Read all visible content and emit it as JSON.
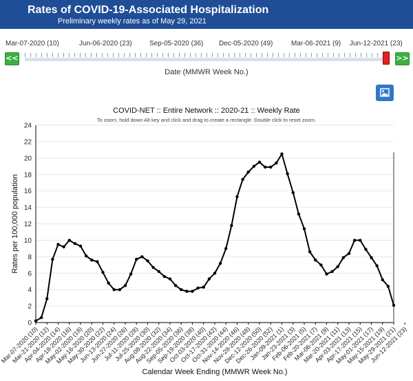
{
  "header": {
    "title": "Rates of COVID-19-Associated Hospitalization",
    "subtitle": "Preliminary weekly rates as of May 29, 2021"
  },
  "timeline": {
    "labels": [
      "Mar-07-2020 (10)",
      "Jun-06-2020 (23)",
      "Sep-05-2020 (36)",
      "Dec-05-2020 (49)",
      "Mar-06-2021 (9)",
      "Jun-12-2021 (23)"
    ],
    "prev_button": "<<",
    "next_button": ">>",
    "caption": "Date (MMWR Week No.)"
  },
  "image_button_icon": "image-icon",
  "colors": {
    "header": "#1f4e96",
    "nav_button": "#3cb043",
    "handle": "#e02020",
    "line": "#000000"
  },
  "chart_data": {
    "type": "line",
    "title": "COVID-NET :: Entire Network :: 2020-21 :: Weekly Rate",
    "subtitle": "To zoom, hold down Alt key and click and drag to create a rectangle. Double click to reset zoom.",
    "xlabel": "Calendar Week Ending (MMWR Week No.)",
    "ylabel": "Rates per 100,000 population",
    "ylim": [
      0,
      24
    ],
    "yticks": [
      0,
      2,
      4,
      6,
      8,
      10,
      12,
      14,
      16,
      18,
      20,
      22,
      24
    ],
    "grid": true,
    "xtick_labels": [
      "Mar-07-2020 (10)",
      "Mar-21-2020 (12)",
      "Apr-04-2020 (14)",
      "Apr-18-2020 (16)",
      "May-02-2020 (18)",
      "May-16-2020 (20)",
      "May-30-2020 (22)",
      "Jun-13-2020 (24)",
      "Jun-27-2020 (26)",
      "Jul-11-2020 (28)",
      "Jul-25-2020 (30)",
      "Aug-08-2020 (32)",
      "Aug-22-2020 (34)",
      "Sep-05-2020 (36)",
      "Sep-19-2020 (38)",
      "Oct-03-2020 (40)",
      "Oct-17-2020 (42)",
      "Oct-31-2020 (44)",
      "Nov-14-2020 (46)",
      "Nov-28-2020 (48)",
      "Dec-12-2020 (50)",
      "Dec-26-2020 (52)",
      "Jan-09-2021 (1)",
      "Jan-23-2021 (3)",
      "Feb-06-2021 (5)",
      "Feb-20-2021 (7)",
      "Mar-06-2021 (9)",
      "Mar-20-2021 (11)",
      "Apr-03-2021 (13)",
      "Apr-17-2021 (15)",
      "May-01-2021 (17)",
      "May-15-2021 (19)",
      "May-29-2021 (21)",
      "Jun-12-2021 (23)"
    ],
    "series": [
      {
        "values": [
          0.2,
          0.6,
          2.9,
          7.7,
          9.5,
          9.2,
          10.0,
          9.6,
          9.3,
          8.1,
          7.6,
          7.4,
          6.1,
          4.8,
          4.0,
          4.0,
          4.5,
          5.9,
          7.7,
          8.0,
          7.5,
          6.7,
          6.2,
          5.6,
          5.3,
          4.5,
          4.0,
          3.8,
          3.8,
          4.2,
          4.3,
          5.3,
          6.0,
          7.2,
          9.0,
          11.8,
          15.3,
          17.4,
          18.3,
          19.0,
          19.5,
          18.9,
          18.9,
          19.4,
          20.5,
          18.1,
          15.8,
          13.2,
          11.4,
          8.6,
          7.6,
          7.0,
          5.9,
          6.2,
          6.8,
          7.9,
          8.4,
          10.0,
          10.0,
          8.9,
          7.9,
          6.9,
          5.2,
          4.4,
          2.1
        ]
      }
    ]
  }
}
